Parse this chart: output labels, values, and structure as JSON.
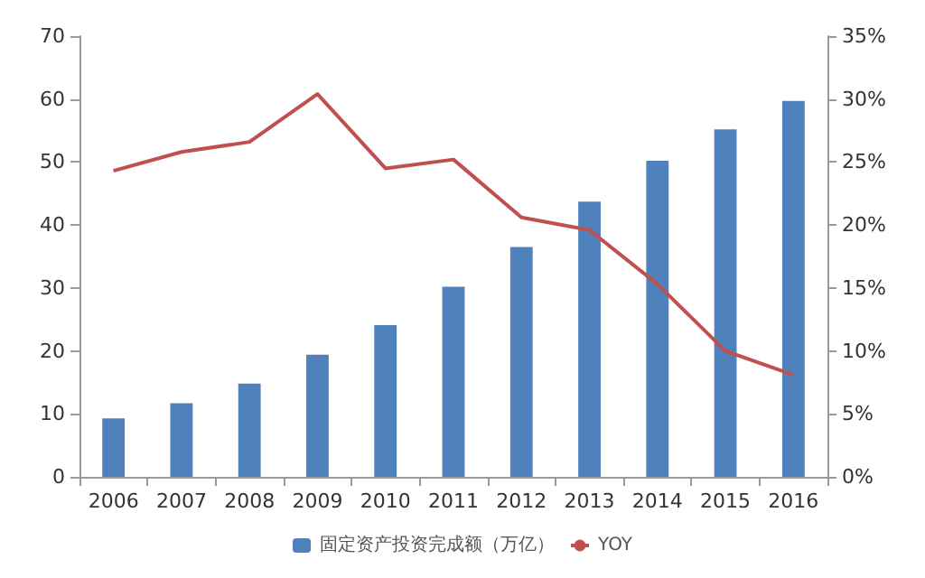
{
  "chart_data": {
    "type": "bar",
    "categories": [
      "2006",
      "2007",
      "2008",
      "2009",
      "2010",
      "2011",
      "2012",
      "2013",
      "2014",
      "2015",
      "2016"
    ],
    "series": [
      {
        "name": "固定资产投资完成额（万亿）",
        "color": "#4f81bd",
        "values": [
          9.3,
          11.7,
          14.8,
          19.4,
          24.1,
          30.2,
          36.5,
          43.7,
          50.2,
          55.2,
          59.7
        ]
      },
      {
        "name": "YOY",
        "type": "line",
        "axis": "y2",
        "color": "#c0504d",
        "values": [
          24.3,
          25.8,
          26.6,
          30.4,
          24.5,
          25.2,
          20.6,
          19.6,
          15.3,
          10.0,
          8.1
        ]
      }
    ],
    "ylim": [
      0,
      70
    ],
    "yticks": [
      0,
      10,
      20,
      30,
      40,
      50,
      60,
      70
    ],
    "y2lim": [
      0,
      35
    ],
    "y2ticks": [
      {
        "value": 0,
        "label": "0%"
      },
      {
        "value": 5,
        "label": "5%"
      },
      {
        "value": 10,
        "label": "10%"
      },
      {
        "value": 15,
        "label": "15%"
      },
      {
        "value": 20,
        "label": "20%"
      },
      {
        "value": 25,
        "label": "25%"
      },
      {
        "value": 30,
        "label": "30%"
      },
      {
        "value": 35,
        "label": "35%"
      }
    ],
    "grid": false,
    "legend": "bottom",
    "marker": "none"
  }
}
